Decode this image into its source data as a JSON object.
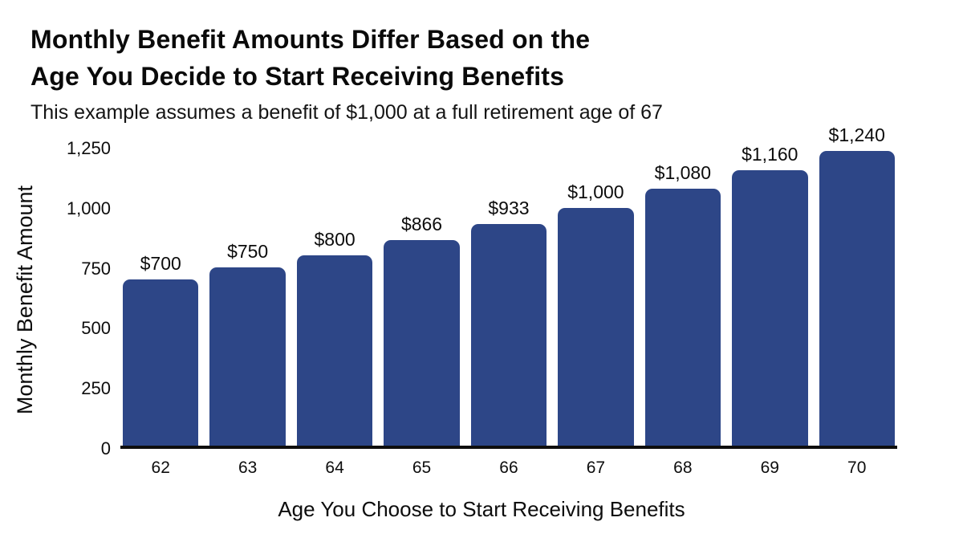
{
  "header": {
    "title_line1": "Monthly Benefit Amounts Differ Based on the",
    "title_line2": "Age You Decide to Start Receiving Benefits",
    "subtitle": "This example assumes a benefit of $1,000 at a full retirement age of 67"
  },
  "chart_data": {
    "type": "bar",
    "title": "Monthly Benefit Amounts Differ Based on the Age You Decide to Start Receiving Benefits",
    "subtitle": "This example assumes a benefit of $1,000 at a full retirement age of 67",
    "categories": [
      "62",
      "63",
      "64",
      "65",
      "66",
      "67",
      "68",
      "69",
      "70"
    ],
    "values": [
      700,
      750,
      800,
      866,
      933,
      1000,
      1080,
      1160,
      1240
    ],
    "bar_labels": [
      "$700",
      "$750",
      "$800",
      "$866",
      "$933",
      "$1,000",
      "$1,080",
      "$1,160",
      "$1,240"
    ],
    "xlabel": "Age You Choose to Start Receiving Benefits",
    "ylabel": "Monthly Benefit Amount",
    "ylim": [
      0,
      1250
    ],
    "yticks": [
      0,
      250,
      500,
      750,
      1000,
      1250
    ],
    "ytick_labels": [
      "0",
      "250",
      "500",
      "750",
      "1,000",
      "1,250"
    ],
    "grid": false,
    "legend": false,
    "bar_color": "#2d4687",
    "axis_color": "#0e0e0e",
    "text_color": "#0d0d0d",
    "background_color": "#ffffff"
  }
}
